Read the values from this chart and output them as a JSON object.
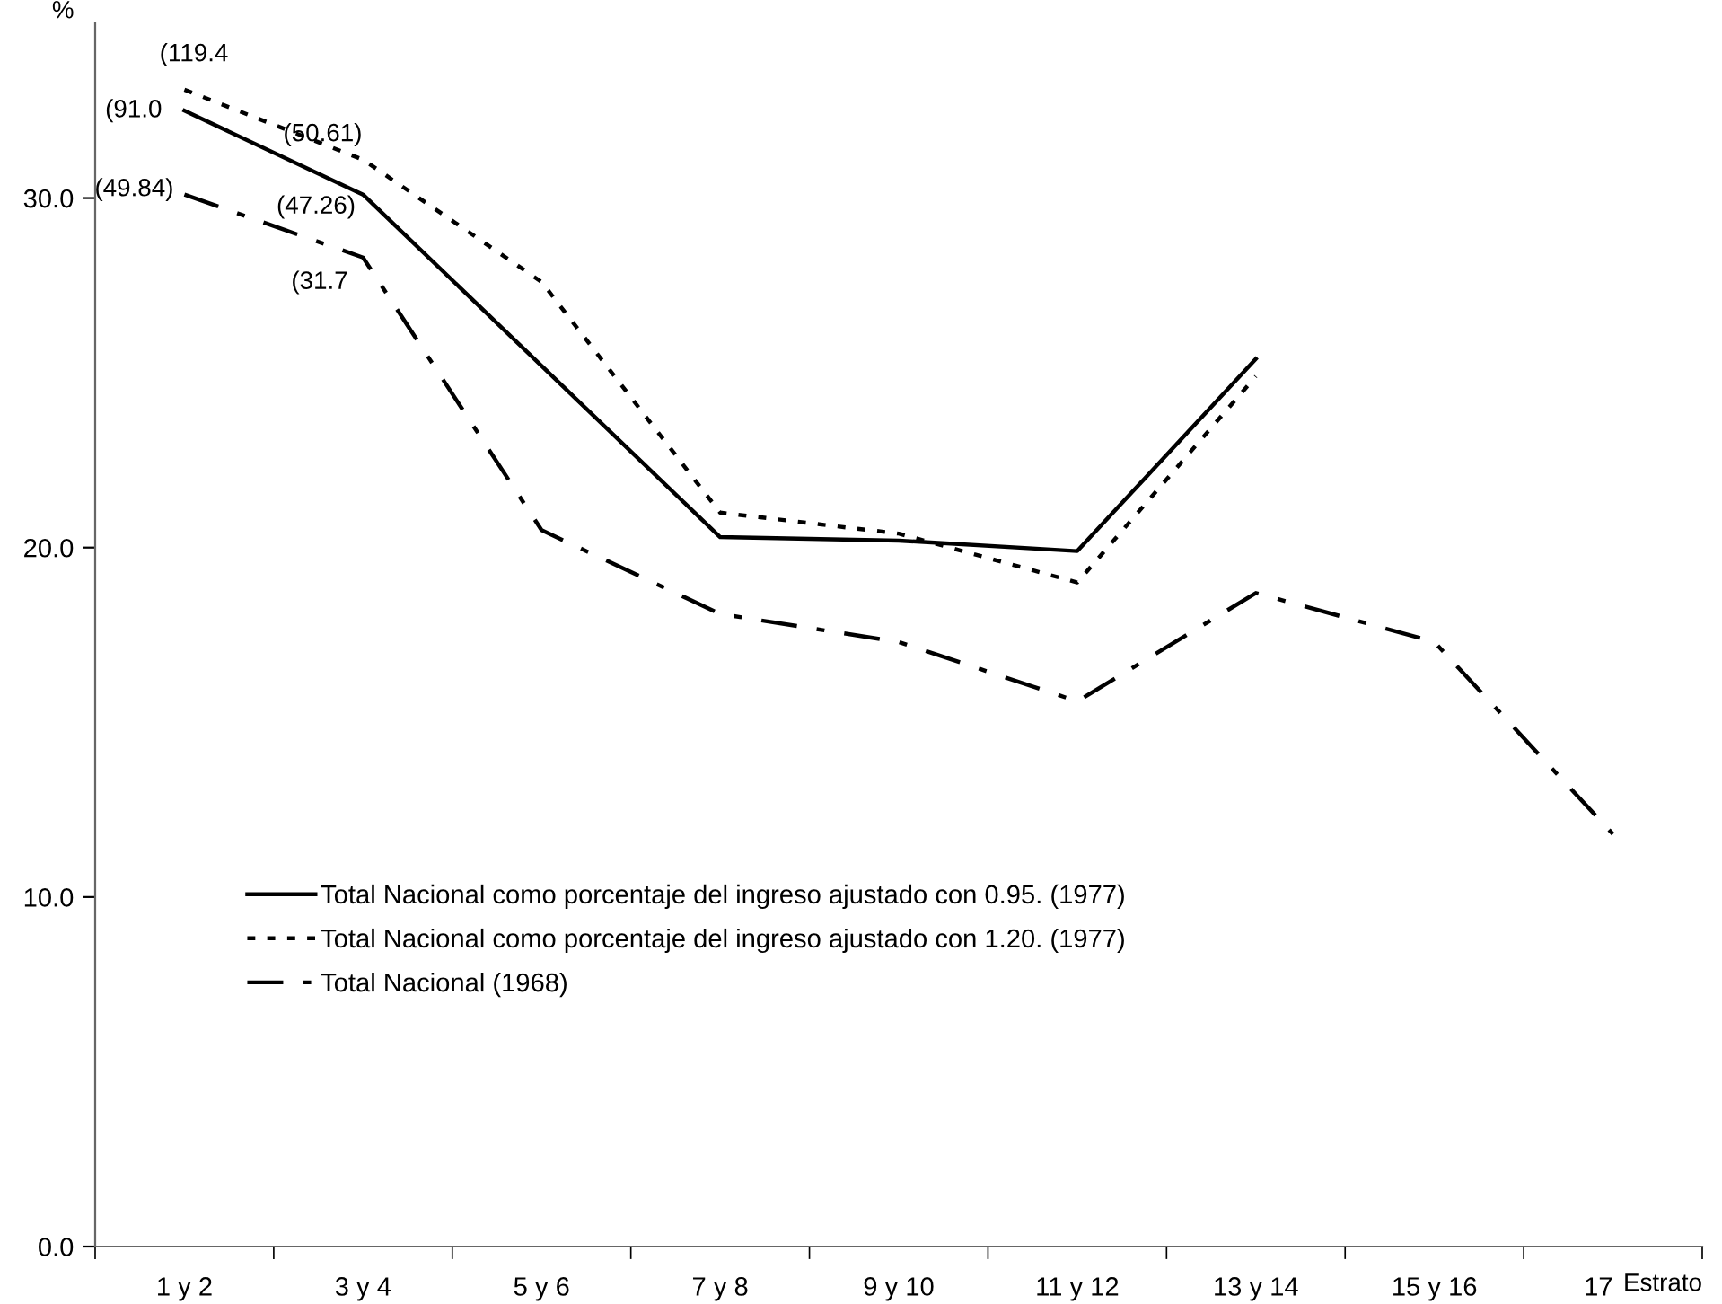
{
  "chart_data": {
    "type": "line",
    "ylabel": "%",
    "xlabel": "Estrato",
    "categories": [
      "1 y 2",
      "3 y 4",
      "5 y 6",
      "7 y 8",
      "9 y 10",
      "11 y 12",
      "13 y 14",
      "15 y 16",
      "17"
    ],
    "series": [
      {
        "name": "Total Nacional como porcentaje del ingreso ajustado con 0.95. (1977)",
        "color": "#000000",
        "line_style": "solid",
        "values": [
          32.5,
          30.1,
          25.2,
          20.3,
          20.2,
          19.9,
          25.4,
          null,
          null
        ]
      },
      {
        "name": "Total Nacional como porcentaje del ingreso ajustado con 1.20. (1977)",
        "color": "#000000",
        "line_style": "dotted",
        "values": [
          33.1,
          31.1,
          27.6,
          21.0,
          20.4,
          19.0,
          24.9,
          null,
          null
        ]
      },
      {
        "name": "Total Nacional (1968)",
        "color": "#000000",
        "line_style": "dashdot",
        "values": [
          30.1,
          28.3,
          20.5,
          18.1,
          17.3,
          15.6,
          18.7,
          17.3,
          11.8
        ]
      }
    ],
    "ylim": [
      0,
      35
    ],
    "yticks": [
      {
        "value": 0,
        "label": "0.0"
      },
      {
        "value": 10,
        "label": "10.0"
      },
      {
        "value": 20,
        "label": "20.0"
      },
      {
        "value": 30,
        "label": "30.0"
      }
    ],
    "annotations": [
      {
        "text": "(119.4",
        "x": "1 y 2",
        "y": 33.1
      },
      {
        "text": "(91.0",
        "x": "1 y 2",
        "y": 32.5
      },
      {
        "text": "(49.84)",
        "x": "1 y 2",
        "y": 30.1
      },
      {
        "text": "(50.61)",
        "x": "3 y 4",
        "y": 31.1
      },
      {
        "text": "(47.26)",
        "x": "3 y 4",
        "y": 30.1
      },
      {
        "text": "(31.7",
        "x": "3 y 4",
        "y": 28.3
      }
    ],
    "legend": "left",
    "grid": false
  }
}
